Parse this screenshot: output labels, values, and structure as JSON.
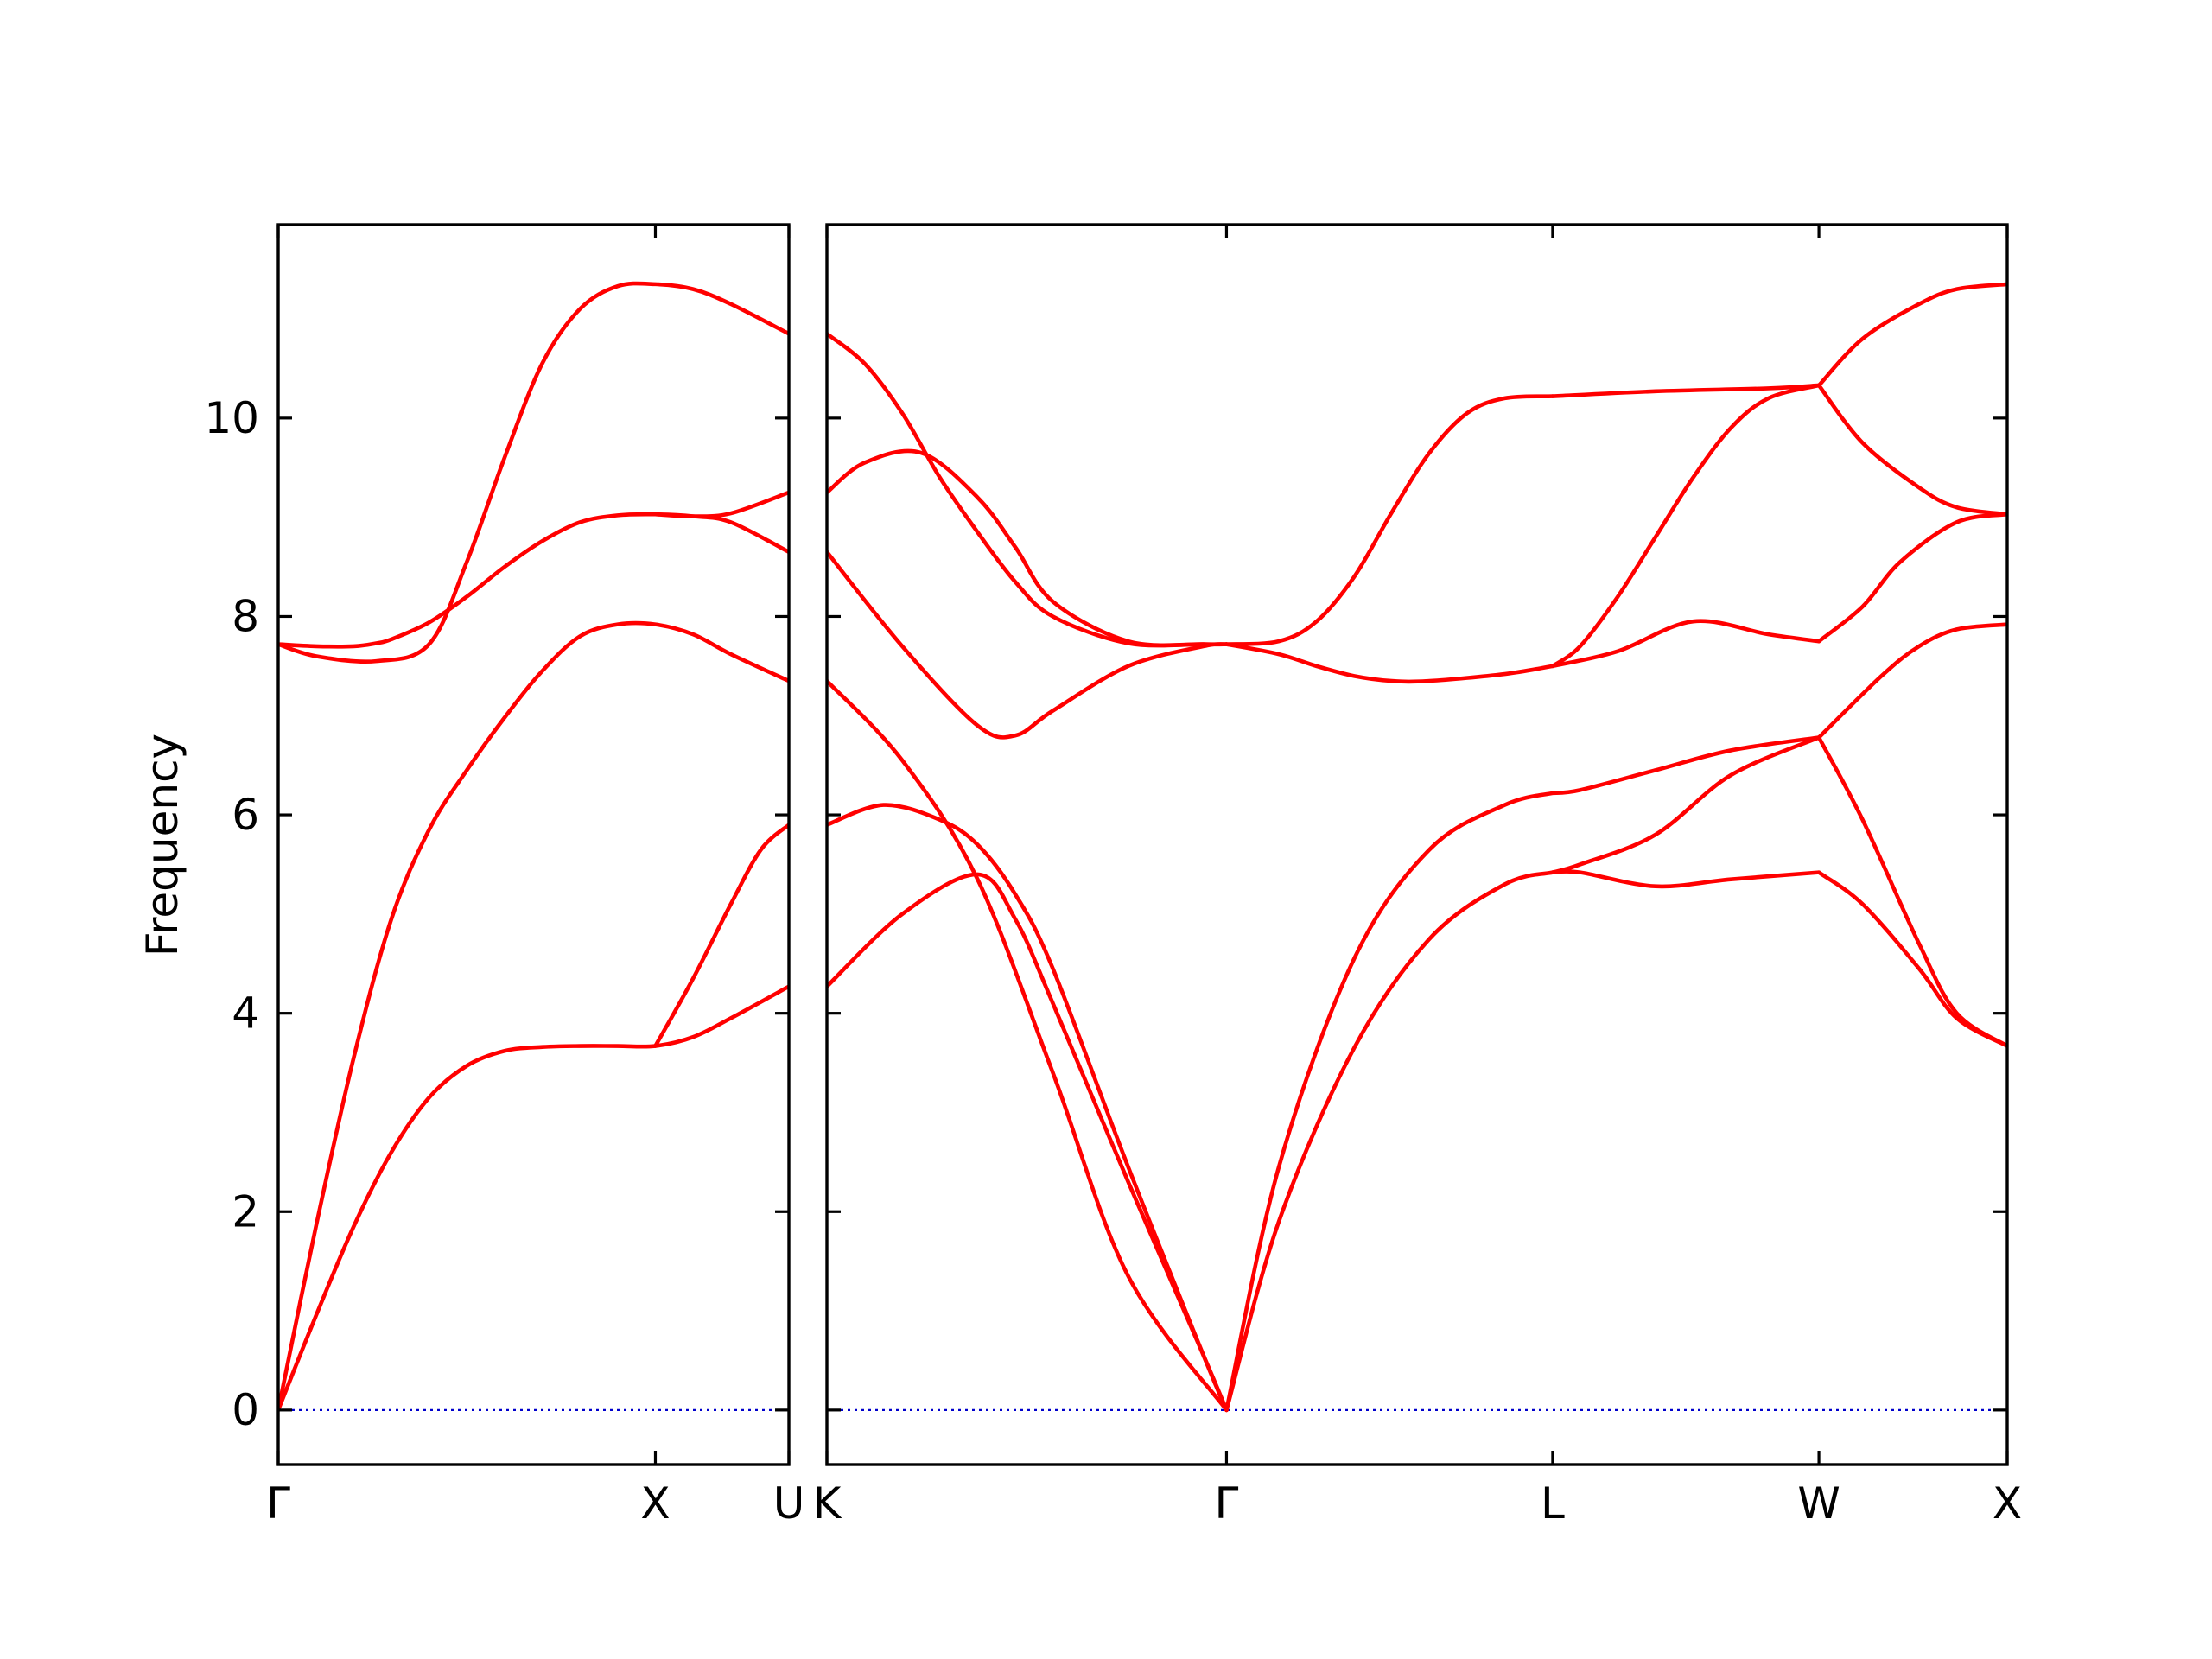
{
  "chart_data": {
    "type": "line",
    "title": "",
    "xlabel": "",
    "ylabel": "Frequency",
    "ylim": [
      -0.55,
      11.95
    ],
    "yticks": [
      0,
      2,
      4,
      6,
      8,
      10
    ],
    "grid": false,
    "legend": null,
    "colors": {
      "bands": "#ff0000",
      "zero_line": "#0000cc",
      "axes": "#000000"
    },
    "panels": [
      {
        "xticks": [
          {
            "label": "Γ",
            "x": 0.0
          },
          {
            "label": "X",
            "x": 1.0
          },
          {
            "label": "U",
            "x": 1.354
          }
        ],
        "xlim": [
          0.0,
          1.354
        ],
        "series": [
          {
            "x": [
              0.0,
              0.1,
              0.2,
              0.3,
              0.4,
              0.5,
              0.6,
              0.7,
              0.8,
              0.9,
              1.0,
              1.1,
              1.2,
              1.354
            ],
            "values": [
              0.0,
              0.95,
              1.85,
              2.6,
              3.15,
              3.47,
              3.62,
              3.66,
              3.67,
              3.67,
              3.67,
              3.76,
              3.95,
              4.27
            ]
          },
          {
            "x": [
              0.0,
              0.1,
              0.2,
              0.3,
              0.4,
              0.5,
              0.6,
              0.7,
              0.8,
              0.9,
              1.0,
              1.1,
              1.2,
              1.354
            ],
            "values": [
              0.0,
              1.85,
              3.55,
              4.95,
              5.85,
              6.45,
              6.98,
              7.45,
              7.8,
              7.92,
              7.92,
              7.82,
              7.62,
              7.35
            ]
          },
          {
            "x": [
              0.0,
              0.1,
              0.2,
              0.26,
              0.3,
              0.4,
              0.5,
              0.6,
              0.7,
              0.8,
              0.9,
              1.0,
              1.1,
              1.2,
              1.354
            ],
            "values": [
              7.72,
              7.7,
              7.7,
              7.73,
              7.77,
              7.94,
              8.2,
              8.5,
              8.76,
              8.95,
              9.02,
              9.03,
              9.01,
              8.95,
              8.65
            ]
          },
          {
            "x": [
              0.0,
              0.1,
              0.26,
              0.4,
              0.5,
              0.6,
              0.7,
              0.8,
              0.9,
              1.0,
              1.1,
              1.2,
              1.354
            ],
            "values": [
              7.72,
              7.6,
              7.55,
              7.72,
              8.55,
              9.6,
              10.55,
              11.1,
              11.33,
              11.35,
              11.3,
              11.15,
              10.85
            ]
          },
          {
            "x": [
              1.0,
              1.1,
              1.2,
              1.28,
              1.354
            ],
            "values": [
              3.67,
              4.35,
              5.1,
              5.65,
              5.9
            ]
          },
          {
            "x": [
              1.0,
              1.1,
              1.2,
              1.354
            ],
            "values": [
              9.03,
              9.01,
              9.04,
              9.25
            ]
          }
        ]
      },
      {
        "xticks": [
          {
            "label": "K",
            "x": 0.0
          },
          {
            "label": "Γ",
            "x": 1.061
          },
          {
            "label": "L",
            "x": 1.927
          },
          {
            "label": "W",
            "x": 2.634
          },
          {
            "label": "X",
            "x": 3.134
          }
        ],
        "xlim": [
          0.0,
          3.134
        ],
        "series": [
          {
            "x": [
              0.0,
              0.2,
              0.4,
              0.5,
              0.6,
              0.8,
              1.0,
              1.061
            ],
            "values": [
              4.27,
              5.0,
              5.4,
              4.95,
              4.1,
              2.3,
              0.55,
              0.0
            ]
          },
          {
            "x": [
              0.0,
              0.15,
              0.3,
              0.4,
              0.5,
              0.6,
              0.8,
              1.0,
              1.061
            ],
            "values": [
              5.9,
              6.1,
              5.95,
              5.7,
              5.2,
              4.45,
              2.45,
              0.55,
              0.0
            ]
          },
          {
            "x": [
              0.0,
              0.2,
              0.4,
              0.6,
              0.8,
              1.061
            ],
            "values": [
              7.35,
              6.55,
              5.35,
              3.4,
              1.35,
              0.0
            ]
          },
          {
            "x": [
              0.0,
              0.2,
              0.4,
              0.5,
              0.6,
              0.8,
              1.0,
              1.061
            ],
            "values": [
              8.65,
              7.7,
              6.9,
              6.8,
              7.05,
              7.5,
              7.7,
              7.72
            ]
          },
          {
            "x": [
              0.0,
              0.1,
              0.25,
              0.4,
              0.5,
              0.6,
              0.8,
              1.0,
              1.061
            ],
            "values": [
              9.25,
              9.55,
              9.65,
              9.2,
              8.7,
              8.15,
              7.75,
              7.72,
              7.72
            ]
          },
          {
            "x": [
              0.0,
              0.1,
              0.2,
              0.3,
              0.4,
              0.5,
              0.6,
              0.8,
              1.0,
              1.061
            ],
            "values": [
              10.85,
              10.55,
              10.05,
              9.4,
              8.85,
              8.35,
              8.0,
              7.73,
              7.72,
              7.72
            ]
          },
          {
            "x": [
              1.061,
              1.2,
              1.4,
              1.6,
              1.8,
              1.927
            ],
            "values": [
              0.0,
              1.9,
              3.65,
              4.75,
              5.3,
              5.42
            ]
          },
          {
            "x": [
              1.061,
              1.2,
              1.4,
              1.6,
              1.8,
              1.927
            ],
            "values": [
              0.0,
              2.45,
              4.55,
              5.65,
              6.1,
              6.22
            ]
          },
          {
            "x": [
              1.061,
              1.2,
              1.3,
              1.4,
              1.5,
              1.6,
              1.8,
              1.927
            ],
            "values": [
              7.72,
              7.62,
              7.5,
              7.4,
              7.35,
              7.35,
              7.42,
              7.5
            ]
          },
          {
            "x": [
              1.061,
              1.2,
              1.3,
              1.4,
              1.5,
              1.6,
              1.7,
              1.8,
              1.927
            ],
            "values": [
              7.72,
              7.75,
              7.95,
              8.4,
              9.05,
              9.65,
              10.05,
              10.2,
              10.22
            ]
          },
          {
            "x": [
              1.927,
              2.0,
              2.2,
              2.4,
              2.634
            ],
            "values": [
              5.42,
              5.42,
              5.28,
              5.35,
              5.42
            ]
          },
          {
            "x": [
              1.927,
              2.0,
              2.2,
              2.4,
              2.634
            ],
            "values": [
              5.42,
              5.5,
              5.8,
              6.4,
              6.78
            ]
          },
          {
            "x": [
              1.927,
              2.0,
              2.2,
              2.4,
              2.634
            ],
            "values": [
              6.22,
              6.25,
              6.45,
              6.65,
              6.78
            ]
          },
          {
            "x": [
              1.927,
              2.1,
              2.3,
              2.5,
              2.634
            ],
            "values": [
              7.5,
              7.65,
              7.95,
              7.82,
              7.75
            ]
          },
          {
            "x": [
              1.927,
              2.0,
              2.1,
              2.2,
              2.3,
              2.4,
              2.5,
              2.634
            ],
            "values": [
              7.5,
              7.7,
              8.2,
              8.8,
              9.4,
              9.9,
              10.2,
              10.33
            ]
          },
          {
            "x": [
              1.927,
              2.2,
              2.5,
              2.634
            ],
            "values": [
              10.22,
              10.27,
              10.3,
              10.33
            ]
          },
          {
            "x": [
              2.634,
              2.75,
              2.9,
              3.0,
              3.134
            ],
            "values": [
              5.42,
              5.1,
              4.45,
              3.95,
              3.67
            ]
          },
          {
            "x": [
              2.634,
              2.75,
              2.9,
              3.0,
              3.134
            ],
            "values": [
              6.78,
              5.95,
              4.7,
              4.0,
              3.67
            ]
          },
          {
            "x": [
              2.634,
              2.8,
              2.9,
              3.0,
              3.134
            ],
            "values": [
              6.78,
              7.4,
              7.7,
              7.87,
              7.92
            ]
          },
          {
            "x": [
              2.634,
              2.75,
              2.85,
              3.0,
              3.134
            ],
            "values": [
              7.75,
              8.1,
              8.55,
              8.95,
              9.03
            ]
          },
          {
            "x": [
              2.634,
              2.75,
              2.9,
              3.0,
              3.134
            ],
            "values": [
              10.33,
              9.75,
              9.3,
              9.1,
              9.03
            ]
          },
          {
            "x": [
              2.634,
              2.75,
              2.9,
              3.0,
              3.134
            ],
            "values": [
              10.33,
              10.8,
              11.15,
              11.3,
              11.35
            ]
          }
        ]
      }
    ]
  }
}
